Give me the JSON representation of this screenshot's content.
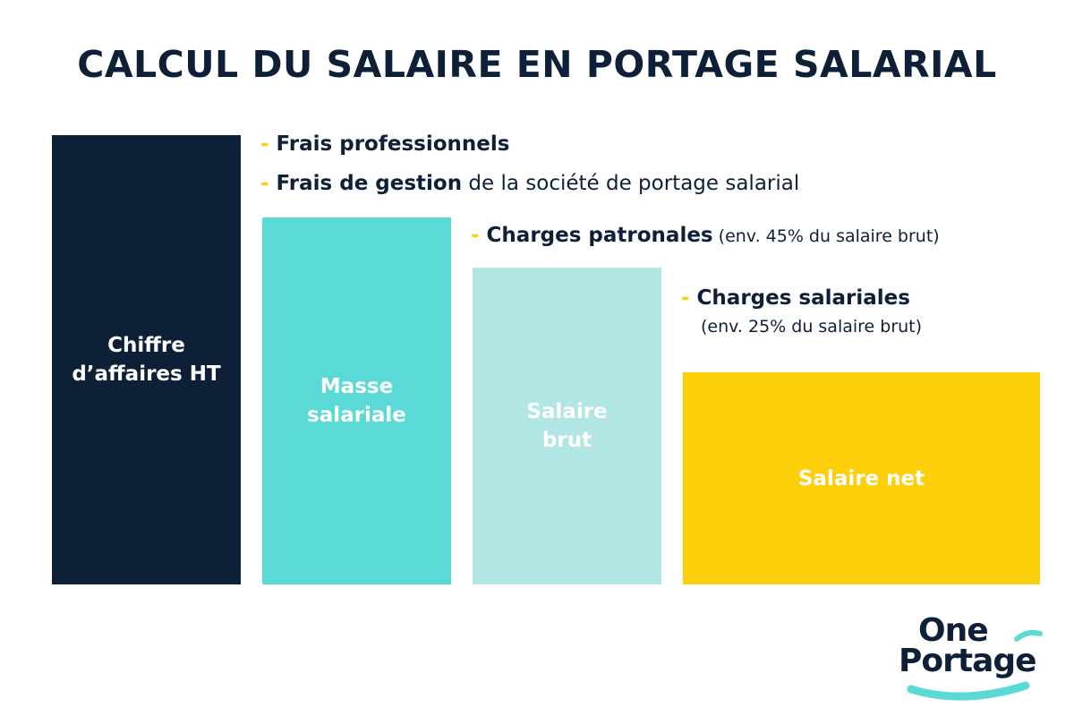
{
  "title": "CALCUL DU SALAIRE EN PORTAGE SALARIAL",
  "colors": {
    "navy": "#0d2038",
    "turquoise": "#5ad9d6",
    "light_turquoise": "#b1e6e5",
    "yellow": "#fccf0a",
    "white": "#ffffff"
  },
  "bars": {
    "chiffre_affaires": {
      "line1": "Chiffre",
      "line2": "d’affaires HT"
    },
    "masse_salariale": {
      "line1": "Masse",
      "line2": "salariale"
    },
    "salaire_brut": {
      "line1": "Salaire",
      "line2": "brut"
    },
    "salaire_net": {
      "line1": "Salaire net"
    }
  },
  "deductions": {
    "dash": "-",
    "frais_pro": {
      "bold": "Frais professionnels"
    },
    "frais_gestion": {
      "bold": "Frais de gestion",
      "rest": " de la société de portage salarial"
    },
    "charges_patronales": {
      "bold": "Charges patronales",
      "note": " (env. 45% du salaire brut)"
    },
    "charges_salariales": {
      "bold": "Charges salariales",
      "note": "(env. 25% du salaire brut)"
    }
  },
  "logo": {
    "word1": "One",
    "word2": "Portage"
  }
}
